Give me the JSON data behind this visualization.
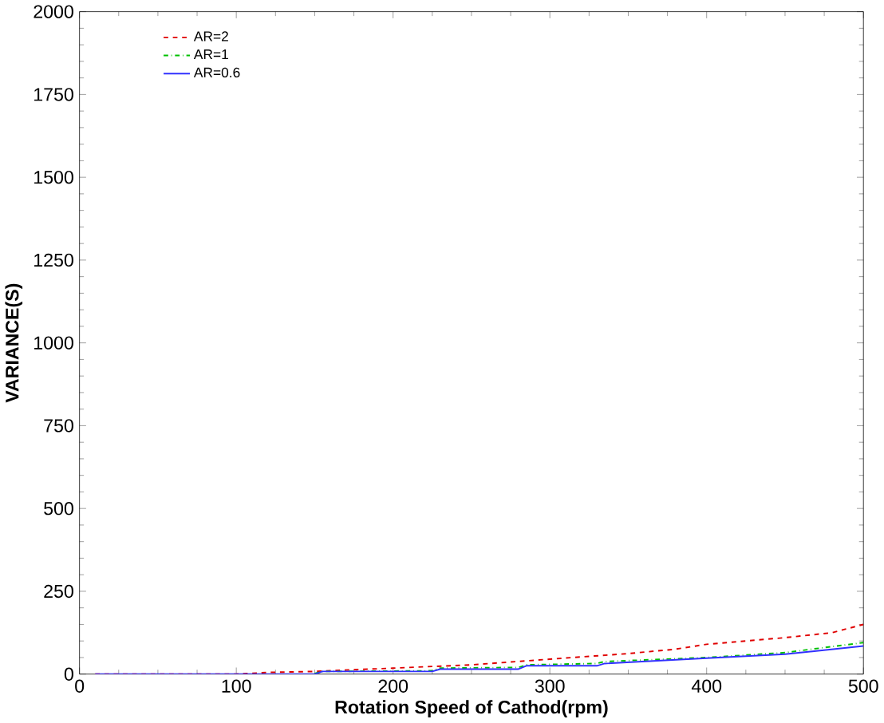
{
  "chart_data": {
    "type": "line",
    "xlabel": "Rotation Speed of Cathod(rpm)",
    "ylabel": "VARIANCE(S)",
    "xlim": [
      0,
      500
    ],
    "ylim": [
      0,
      2000
    ],
    "xticks": [
      0,
      100,
      200,
      300,
      400,
      500
    ],
    "yticks": [
      0,
      250,
      500,
      750,
      1000,
      1250,
      1500,
      1750,
      2000
    ],
    "legend": "top left",
    "grid": false,
    "series": [
      {
        "name": "AR=2",
        "color": "#e00000",
        "line_style": "dashed",
        "x": [
          10,
          100,
          120,
          150,
          200,
          250,
          300,
          350,
          380,
          400,
          450,
          480,
          500
        ],
        "values": [
          0,
          0,
          5,
          8,
          18,
          28,
          45,
          62,
          75,
          90,
          110,
          125,
          150
        ]
      },
      {
        "name": "AR=1",
        "color": "#00c000",
        "line_style": "dashdot",
        "x": [
          150,
          155,
          225,
          230,
          280,
          285,
          330,
          335,
          400,
          450,
          500
        ],
        "values": [
          2,
          8,
          10,
          18,
          20,
          28,
          32,
          38,
          50,
          65,
          95
        ]
      },
      {
        "name": "AR=0.6",
        "color": "#3030ff",
        "line_style": "solid",
        "x": [
          10,
          150,
          155,
          225,
          230,
          280,
          285,
          330,
          335,
          400,
          450,
          500
        ],
        "values": [
          0,
          0,
          8,
          8,
          15,
          15,
          25,
          25,
          32,
          48,
          60,
          85
        ]
      }
    ]
  }
}
